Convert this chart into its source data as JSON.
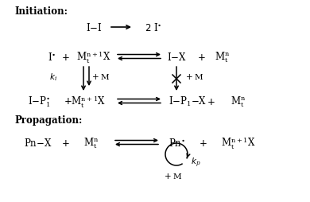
{
  "bg_color": "#ffffff",
  "figsize": [
    3.9,
    2.55
  ],
  "dpi": 100,
  "font_family": "DejaVu Serif"
}
